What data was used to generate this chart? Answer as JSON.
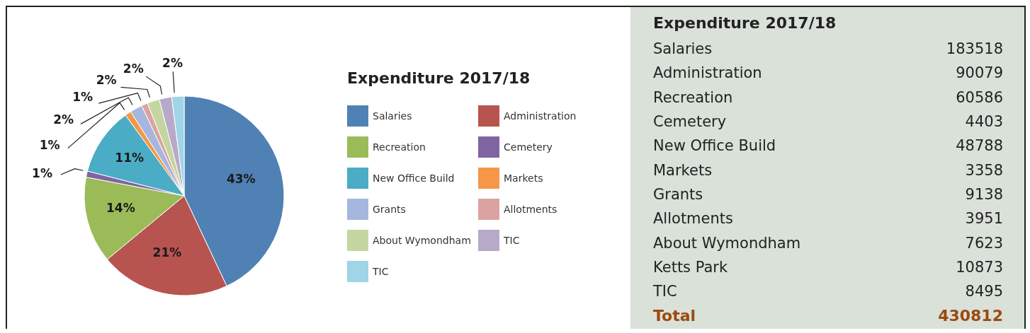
{
  "chart_data": [
    {
      "type": "pie",
      "legend_title": "Expenditure 2017/18",
      "legend": "right",
      "categories": [
        "Salaries",
        "Administration",
        "Recreation",
        "Cemetery",
        "New Office Build",
        "Markets",
        "Grants",
        "Allotments",
        "About Wymondham",
        "TIC",
        "TIC"
      ],
      "values": [
        43,
        21,
        14,
        1,
        11,
        1,
        2,
        1,
        2,
        2,
        2
      ],
      "value_labels": [
        "43%",
        "21%",
        "14%",
        "1%",
        "11%",
        "1%",
        "2%",
        "1%",
        "2%",
        "2%",
        "2%"
      ],
      "colors": [
        "#4f81b4",
        "#b85450",
        "#9bbb59",
        "#8064a2",
        "#4bacc6",
        "#f79646",
        "#a5b7de",
        "#dba3a0",
        "#c4d6a0",
        "#b8a9c9",
        "#9fd5e6"
      ]
    },
    {
      "type": "other",
      "title": "Expenditure 2017/18",
      "categories": [
        "Salaries",
        "Administration",
        "Recreation",
        "Cemetery",
        "New Office Build",
        "Markets",
        "Grants",
        "Allotments",
        "About Wymondham",
        "Ketts Park",
        "TIC"
      ],
      "values": [
        183518,
        90079,
        60586,
        4403,
        48788,
        3358,
        9138,
        3951,
        7623,
        10873,
        8495
      ],
      "data_labels": true,
      "annotations": [
        "Total"
      ],
      "totals": [
        "430812"
      ]
    }
  ]
}
